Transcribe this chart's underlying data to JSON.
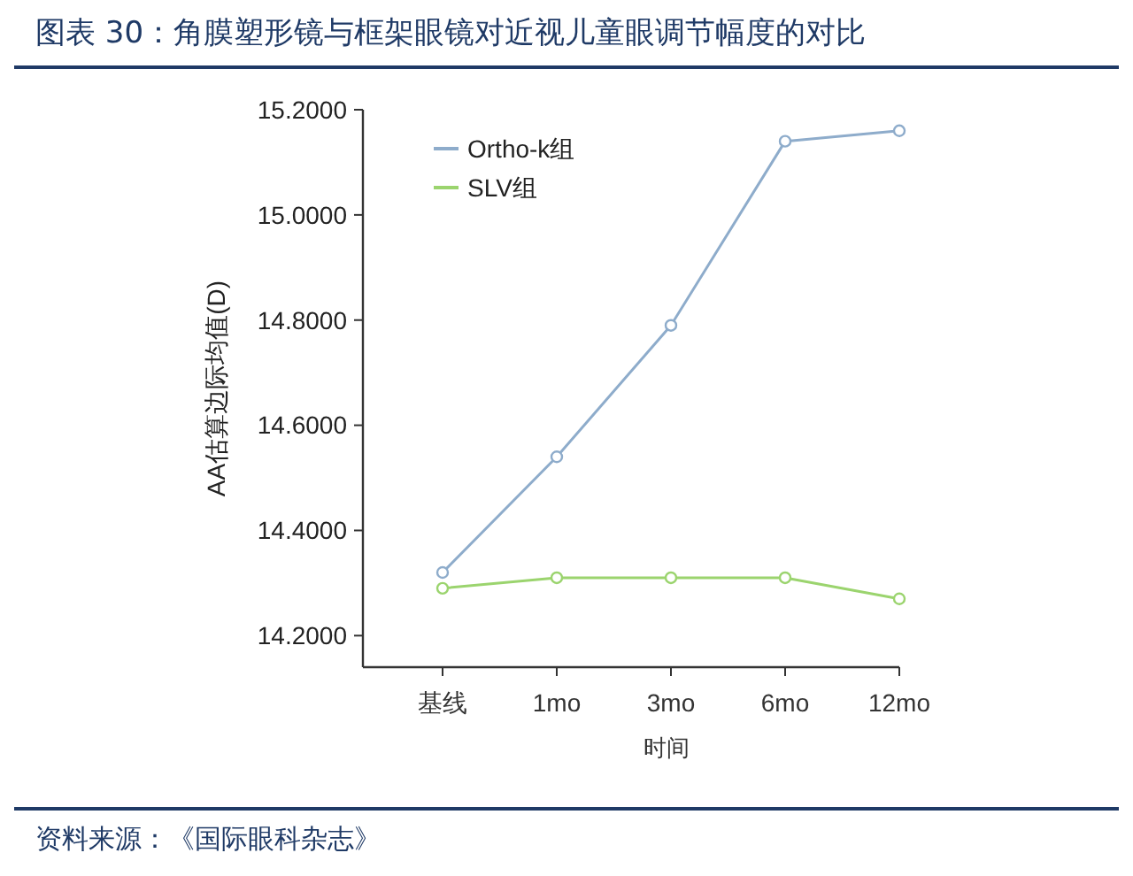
{
  "chart_data": {
    "type": "line",
    "title": "图表 30：角膜塑形镜与框架眼镜对近视儿童眼调节幅度的对比",
    "xlabel": "时间",
    "ylabel": "AA估算边际均值(D)",
    "categories": [
      "基线",
      "1mo",
      "3mo",
      "6mo",
      "12mo"
    ],
    "series": [
      {
        "name": "Ortho-k组",
        "color": "#8eaccb",
        "values": [
          14.32,
          14.54,
          14.79,
          15.14,
          15.16
        ]
      },
      {
        "name": "SLV组",
        "color": "#9bd46e",
        "values": [
          14.29,
          14.31,
          14.31,
          14.31,
          14.27
        ]
      }
    ],
    "ylim": [
      14.14,
      15.2
    ],
    "yticks": [
      {
        "value": 14.2,
        "label": "14.2000"
      },
      {
        "value": 14.4,
        "label": "14.4000"
      },
      {
        "value": 14.6,
        "label": "14.6000"
      },
      {
        "value": 14.8,
        "label": "14.8000"
      },
      {
        "value": 15,
        "label": "15.0000"
      },
      {
        "value": 15.2,
        "label": "15.2000"
      }
    ],
    "grid": false,
    "legend": "top left",
    "marker": "circle",
    "line_style": "solid",
    "annotations": [
      "资料来源：《国际眼科杂志》"
    ]
  }
}
